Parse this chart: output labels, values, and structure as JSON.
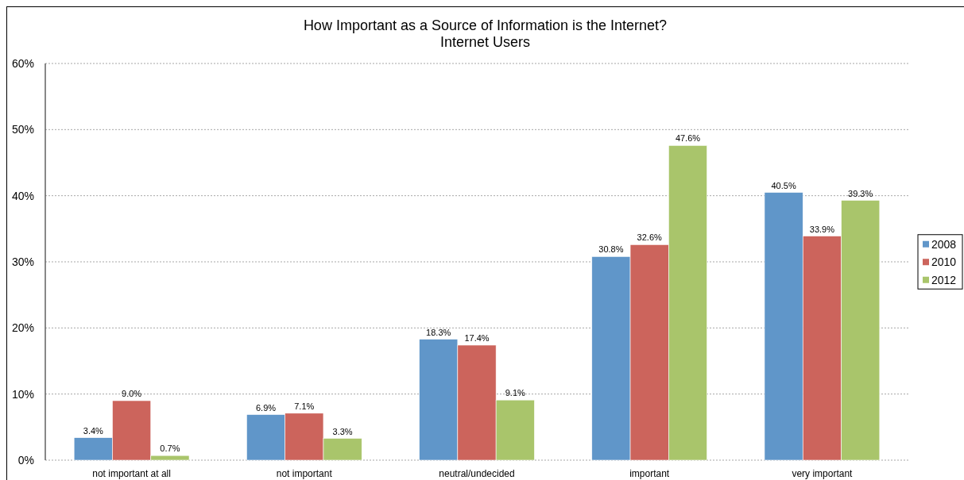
{
  "chart_data": {
    "type": "bar",
    "title": "How Important as a Source of Information is the Internet?",
    "subtitle": "Internet Users",
    "categories": [
      "not important at all",
      "not important",
      "neutral/undecided",
      "important",
      "very important"
    ],
    "series": [
      {
        "name": "2008",
        "color": "#6096c9",
        "values": [
          3.4,
          6.9,
          18.3,
          30.8,
          40.5
        ],
        "value_labels": [
          "3.4%",
          "6.9%",
          "18.3%",
          "30.8%",
          "40.5%"
        ]
      },
      {
        "name": "2010",
        "color": "#cc645c",
        "values": [
          9.0,
          7.1,
          17.4,
          32.6,
          33.9
        ],
        "value_labels": [
          "9.0%",
          "7.1%",
          "17.4%",
          "32.6%",
          "33.9%"
        ]
      },
      {
        "name": "2012",
        "color": "#a9c56b",
        "values": [
          0.7,
          3.3,
          9.1,
          47.6,
          39.3
        ],
        "value_labels": [
          "0.7%",
          "3.3%",
          "9.1%",
          "47.6%",
          "39.3%"
        ]
      }
    ],
    "ylim": [
      0,
      60
    ],
    "yticks": [
      {
        "value": 0,
        "label": "0%"
      },
      {
        "value": 10,
        "label": "10%"
      },
      {
        "value": 20,
        "label": "20%"
      },
      {
        "value": 30,
        "label": "30%"
      },
      {
        "value": 40,
        "label": "40%"
      },
      {
        "value": 50,
        "label": "50%"
      },
      {
        "value": 60,
        "label": "60%"
      }
    ],
    "grid": "y",
    "legend": "right"
  }
}
